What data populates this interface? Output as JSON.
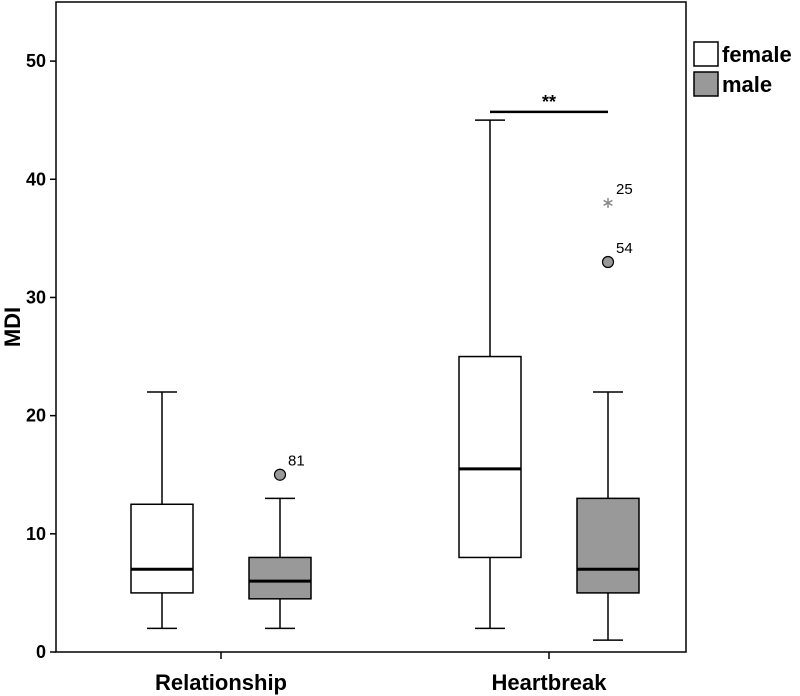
{
  "chart_data": {
    "type": "boxplot",
    "ylabel": "MDI",
    "ylim": [
      0,
      55
    ],
    "yticks": [
      0,
      10,
      20,
      30,
      40,
      50
    ],
    "categories": [
      "Relationship",
      "Heartbreak"
    ],
    "legend": {
      "placement": "top-right-outside",
      "entries": [
        {
          "name": "female",
          "color": "#ffffff"
        },
        {
          "name": "male",
          "color": "#999999"
        }
      ]
    },
    "series": [
      {
        "name": "female",
        "color": "#ffffff",
        "boxes": [
          {
            "category": "Relationship",
            "min": 2,
            "q1": 5,
            "median": 7,
            "q3": 12.5,
            "max": 22,
            "outliers": []
          },
          {
            "category": "Heartbreak",
            "min": 2,
            "q1": 8,
            "median": 15.5,
            "q3": 25,
            "max": 45,
            "outliers": []
          }
        ]
      },
      {
        "name": "male",
        "color": "#999999",
        "boxes": [
          {
            "category": "Relationship",
            "min": 2,
            "q1": 4.5,
            "median": 6,
            "q3": 8,
            "max": 13,
            "outliers": [
              {
                "value": 15,
                "label": "81",
                "marker": "circle"
              }
            ]
          },
          {
            "category": "Heartbreak",
            "min": 1,
            "q1": 5,
            "median": 7,
            "q3": 13,
            "max": 22,
            "outliers": [
              {
                "value": 33,
                "label": "54",
                "marker": "circle"
              },
              {
                "value": 38,
                "label": "25",
                "marker": "star"
              }
            ]
          }
        ]
      }
    ],
    "annotations": [
      {
        "category": "Heartbreak",
        "from": "female",
        "to": "male",
        "y": 45.7,
        "text": "**"
      }
    ]
  }
}
